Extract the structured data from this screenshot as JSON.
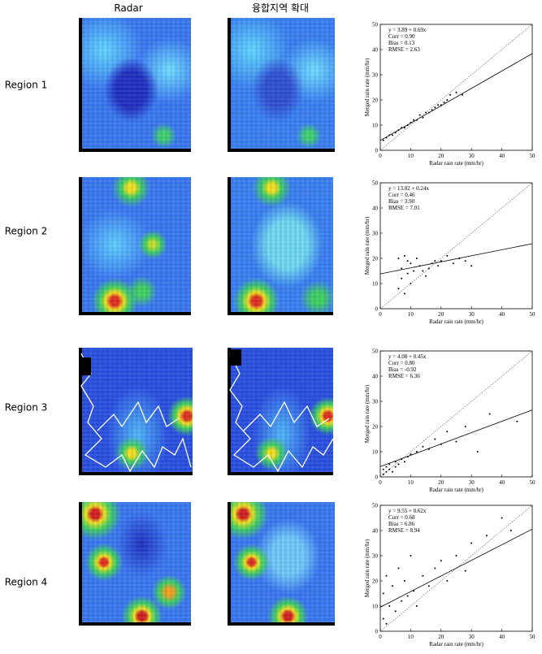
{
  "header": [
    "Radar",
    "융합지역 확대"
  ],
  "chart_data": [
    {
      "type": "scatter",
      "row_label": "Region 1",
      "xlabel": "Radar rain rate (mm/hr)",
      "ylabel": "Merged rain rate (mm/hr)",
      "annotations": [
        "y =  3.89 + 0.69x",
        "Corr =  0.90",
        "Bias =  0.13",
        "RMSE =  2.63"
      ],
      "fit": {
        "intercept": 3.89,
        "slope": 0.69
      },
      "xlim": [
        0,
        50
      ],
      "ylim": [
        0,
        50
      ],
      "xticks": [
        0,
        10,
        20,
        30,
        40,
        50
      ],
      "yticks": [
        0,
        10,
        20,
        30,
        40,
        50
      ],
      "x": [
        1,
        2,
        3,
        4,
        5,
        6,
        7,
        8,
        9,
        10,
        11,
        12,
        13,
        14,
        15,
        16,
        17,
        18,
        19,
        20,
        21,
        22,
        23,
        25,
        27
      ],
      "y": [
        4,
        5,
        6,
        6,
        7,
        8,
        9,
        9,
        10,
        11,
        12,
        12,
        14,
        13,
        15,
        15,
        16,
        17,
        18,
        18,
        19,
        20,
        22,
        23,
        22
      ]
    },
    {
      "type": "scatter",
      "row_label": "Region 2",
      "xlabel": "Radar rain rate (mm/hr)",
      "ylabel": "Merged rain rate (mm/hr)",
      "annotations": [
        "y =  13.82 + 0.24x",
        "Corr =  0.46",
        "Bias =  3.90",
        "RMSE =  7.01"
      ],
      "fit": {
        "intercept": 13.82,
        "slope": 0.24
      },
      "xlim": [
        0,
        50
      ],
      "ylim": [
        0,
        50
      ],
      "xticks": [
        0,
        10,
        20,
        30,
        40,
        50
      ],
      "yticks": [
        0,
        10,
        20,
        30,
        40,
        50
      ],
      "x": [
        6,
        6,
        7,
        7,
        8,
        8,
        9,
        9,
        10,
        10,
        11,
        12,
        13,
        14,
        15,
        16,
        17,
        18,
        19,
        20,
        22,
        24,
        26,
        28,
        30
      ],
      "y": [
        8,
        20,
        12,
        16,
        6,
        21,
        14,
        19,
        10,
        18,
        15,
        20,
        17,
        15,
        13,
        16,
        18,
        19,
        17,
        19,
        21,
        18,
        20,
        19,
        17
      ]
    },
    {
      "type": "scatter",
      "row_label": "Region 3",
      "xlabel": "Radar rain rate (mm/hr)",
      "ylabel": "Merged rain rate (mm/hr)",
      "annotations": [
        "y =  4.08 + 0.45x",
        "Corr =  0.80",
        "Bias =  -0.92",
        "RMSE =  6.36"
      ],
      "fit": {
        "intercept": 4.08,
        "slope": 0.45
      },
      "xlim": [
        0,
        50
      ],
      "ylim": [
        0,
        50
      ],
      "xticks": [
        0,
        10,
        20,
        30,
        40,
        50
      ],
      "yticks": [
        0,
        10,
        20,
        30,
        40,
        50
      ],
      "x": [
        1,
        1,
        2,
        2,
        3,
        3,
        4,
        5,
        5,
        6,
        7,
        8,
        9,
        10,
        12,
        14,
        16,
        18,
        20,
        22,
        25,
        28,
        32,
        36,
        45
      ],
      "y": [
        1,
        3,
        2,
        4,
        3,
        5,
        2,
        4,
        6,
        5,
        7,
        6,
        8,
        9,
        10,
        12,
        11,
        15,
        13,
        18,
        14,
        20,
        10,
        25,
        22
      ]
    },
    {
      "type": "scatter",
      "row_label": "Region 4",
      "xlabel": "Radar rain rate (mm/hr)",
      "ylabel": "Merged rain rate (mm/hr)",
      "annotations": [
        "y =  9.55 + 0.62x",
        "Corr =  0.68",
        "Bias =  6.86",
        "RMSE =  8.94"
      ],
      "fit": {
        "intercept": 9.55,
        "slope": 0.62
      },
      "xlim": [
        0,
        50
      ],
      "ylim": [
        0,
        50
      ],
      "xticks": [
        0,
        10,
        20,
        30,
        40,
        50
      ],
      "yticks": [
        0,
        10,
        20,
        30,
        40,
        50
      ],
      "x": [
        1,
        1,
        2,
        2,
        3,
        4,
        5,
        6,
        7,
        8,
        9,
        10,
        11,
        12,
        14,
        16,
        18,
        20,
        22,
        25,
        28,
        30,
        35,
        40,
        43
      ],
      "y": [
        5,
        15,
        3,
        22,
        10,
        18,
        8,
        25,
        12,
        20,
        14,
        30,
        16,
        10,
        22,
        18,
        25,
        28,
        20,
        30,
        24,
        35,
        38,
        45,
        40
      ]
    }
  ]
}
